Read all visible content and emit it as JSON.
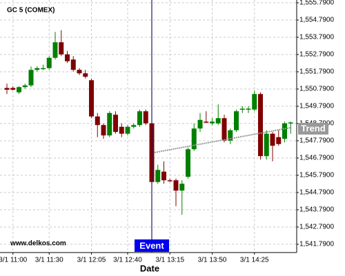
{
  "chart_data": {
    "type": "candlestick",
    "title": "GC 5 (COMEX)",
    "watermark": "www.delkos.com",
    "x_label": "Date",
    "categories": [
      null,
      "3/1 11:00",
      null,
      null,
      null,
      null,
      null,
      "3/1 11:30",
      null,
      null,
      null,
      null,
      null,
      null,
      "3/1 12:05",
      null,
      null,
      null,
      null,
      null,
      "3/1 12:40",
      null,
      null,
      null,
      null,
      null,
      null,
      "3/1 13:15",
      null,
      null,
      null,
      null,
      null,
      null,
      "3/1 13:50",
      null,
      null,
      null,
      null,
      null,
      null,
      "3/1 14:25",
      null,
      null,
      null,
      null,
      null,
      null
    ],
    "open": [
      1550.85,
      1550.85,
      1550.6,
      1550.9,
      1551.0,
      1551.9,
      1552.0,
      1552.0,
      1552.6,
      1553.5,
      1552.8,
      1552.5,
      1551.9,
      1551.7,
      1551.3,
      1549.2,
      1548.7,
      1548.1,
      1549.3,
      1548.6,
      1548.2,
      1548.6,
      1548.7,
      1549.5,
      1548.8,
      1545.4,
      1546.0,
      1545.5,
      1545.5,
      1544.9,
      1545.7,
      1547.3,
      1548.5,
      1548.9,
      1548.8,
      1548.8,
      1549.1,
      1547.8,
      1548.4,
      1549.6,
      1549.6,
      1549.6,
      1550.5,
      1546.9,
      1548.2,
      1548.0,
      1547.9,
      1548.8
    ],
    "high": [
      1551.1,
      1550.95,
      1550.95,
      1551.1,
      1552.1,
      1552.1,
      1552.2,
      1552.7,
      1554.1,
      1554.2,
      1553.0,
      1552.7,
      1552.0,
      1551.9,
      1551.4,
      1549.4,
      1548.8,
      1549.5,
      1549.5,
      1548.8,
      1548.7,
      1548.8,
      1549.6,
      1549.6,
      1548.9,
      1546.4,
      1546.6,
      1545.6,
      1545.6,
      1545.5,
      1547.4,
      1548.8,
      1549.4,
      1549.5,
      1549.1,
      1549.9,
      1549.3,
      1548.5,
      1549.6,
      1549.8,
      1549.8,
      1550.7,
      1550.6,
      1548.4,
      1548.3,
      1548.4,
      1548.9,
      1548.9
    ],
    "low": [
      1550.5,
      1550.7,
      1550.5,
      1550.8,
      1550.9,
      1551.8,
      1551.9,
      1551.9,
      1552.5,
      1552.7,
      1552.3,
      1551.8,
      1551.6,
      1551.4,
      1549.1,
      1548.0,
      1547.9,
      1548.0,
      1548.2,
      1548.0,
      1548.1,
      1548.5,
      1548.6,
      1548.7,
      1545.3,
      1545.3,
      1545.3,
      1545.4,
      1544.0,
      1543.5,
      1545.6,
      1547.2,
      1548.3,
      1548.8,
      1548.7,
      1548.7,
      1547.7,
      1547.6,
      1548.3,
      1549.4,
      1549.4,
      1549.5,
      1546.7,
      1546.7,
      1546.6,
      1547.5,
      1547.7,
      1548.2
    ],
    "close": [
      1550.75,
      1550.75,
      1550.9,
      1551.0,
      1551.9,
      1552.0,
      1552.0,
      1552.6,
      1553.5,
      1552.8,
      1552.4,
      1551.9,
      1551.7,
      1551.5,
      1549.2,
      1548.7,
      1548.1,
      1549.4,
      1548.3,
      1548.2,
      1548.6,
      1548.7,
      1549.5,
      1548.8,
      1545.4,
      1546.1,
      1545.5,
      1545.45,
      1544.9,
      1545.3,
      1547.3,
      1548.5,
      1549.0,
      1548.85,
      1548.9,
      1549.1,
      1547.8,
      1548.4,
      1549.5,
      1549.65,
      1549.65,
      1550.5,
      1546.9,
      1548.2,
      1547.5,
      1547.6,
      1548.8,
      1548.85
    ],
    "up_color": "#008000",
    "down_color": "#800000",
    "trend": {
      "label": "Trend",
      "x": [
        24,
        47
      ],
      "values": [
        1547.11,
        1548.55
      ],
      "color": "#999999"
    },
    "event": {
      "label": "Event",
      "index": 24,
      "color": "#1a1a6e",
      "label_color": "#0000ee"
    },
    "ylim": [
      1541.31,
      1555.95
    ],
    "yticks": [
      {
        "value": 1541.79,
        "label": "1,541.7900"
      },
      {
        "value": 1542.79,
        "label": "1,542.7900"
      },
      {
        "value": 1543.79,
        "label": "1,543.7900"
      },
      {
        "value": 1544.79,
        "label": "1,544.7900"
      },
      {
        "value": 1545.79,
        "label": "1,545.7900"
      },
      {
        "value": 1546.79,
        "label": "1,546.7900"
      },
      {
        "value": 1547.79,
        "label": "1,547.7900"
      },
      {
        "value": 1548.79,
        "label": "1,548.7900"
      },
      {
        "value": 1549.79,
        "label": "1,549.7900"
      },
      {
        "value": 1550.79,
        "label": "1,550.7900"
      },
      {
        "value": 1551.79,
        "label": "1,551.7900"
      },
      {
        "value": 1552.79,
        "label": "1,552.7900"
      },
      {
        "value": 1553.79,
        "label": "1,553.7900"
      },
      {
        "value": 1554.79,
        "label": "1,554.7900"
      },
      {
        "value": 1555.79,
        "label": "1,555.7900"
      }
    ],
    "grid": true
  }
}
